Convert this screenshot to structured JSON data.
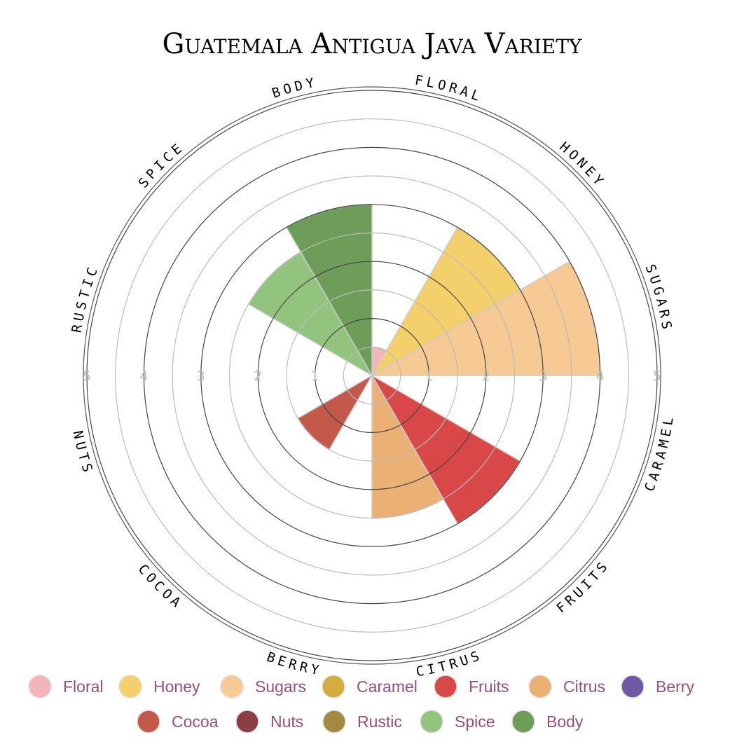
{
  "chart_data": {
    "type": "polar-area",
    "title": "Guatemala Antigua Java Variety",
    "rmax": 5,
    "ticks": [
      1,
      2,
      3,
      4,
      5
    ],
    "categories": [
      "Floral",
      "Honey",
      "Sugars",
      "Caramel",
      "Fruits",
      "Citrus",
      "Berry",
      "Cocoa",
      "Nuts",
      "Rustic",
      "Spice",
      "Body"
    ],
    "axis_labels": [
      "FLORAL",
      "HONEY",
      "SUGARS",
      "CARAMEL",
      "FRUITS",
      "CITRUS",
      "BERRY",
      "COCOA",
      "NUTS",
      "RUSTIC",
      "SPICE",
      "BODY"
    ],
    "values": [
      0.5,
      3.0,
      4.0,
      0,
      3.0,
      2.5,
      0,
      1.5,
      0,
      0,
      2.5,
      3.0
    ],
    "colors": [
      "#f2b5b8",
      "#f4d06c",
      "#f7c994",
      "#d4ac3f",
      "#d94848",
      "#ebb073",
      "#6e5aa0",
      "#c2594a",
      "#8a3f45",
      "#a38a40",
      "#93c47d",
      "#6e9d5a"
    ],
    "grid": true,
    "legend_position": "bottom"
  }
}
